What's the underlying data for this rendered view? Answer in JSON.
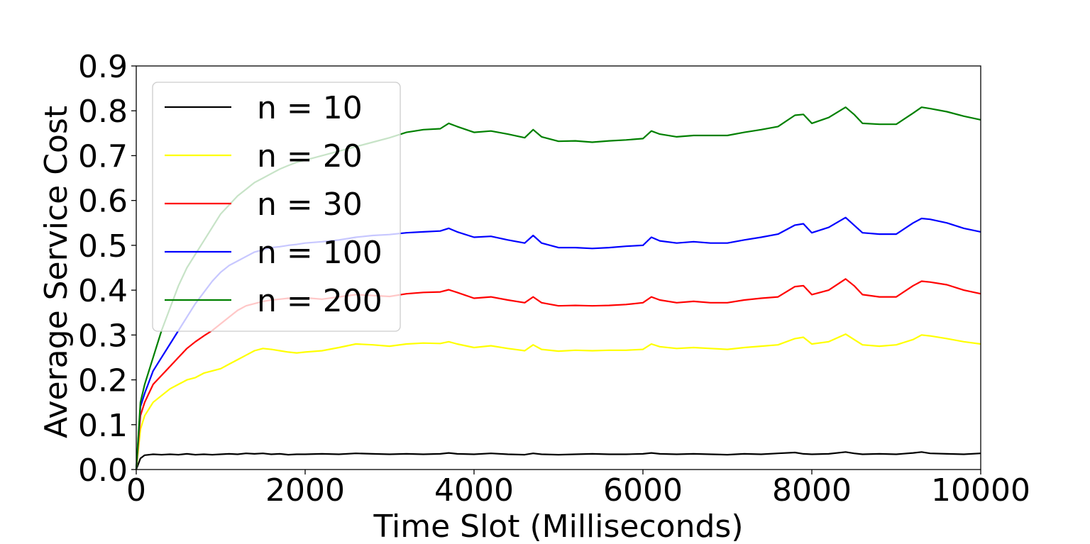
{
  "chart_data": {
    "type": "line",
    "xlabel": "Time Slot (Milliseconds)",
    "ylabel": "Average Service Cost",
    "xlim": [
      0,
      10000
    ],
    "ylim": [
      0.0,
      0.9
    ],
    "x_ticks": [
      0,
      2000,
      4000,
      6000,
      8000,
      10000
    ],
    "y_ticks": [
      0.0,
      0.1,
      0.2,
      0.3,
      0.4,
      0.5,
      0.6,
      0.7,
      0.8,
      0.9
    ],
    "x_tick_labels": [
      "0",
      "2000",
      "4000",
      "6000",
      "8000",
      "10000"
    ],
    "y_tick_labels": [
      "0.0",
      "0.1",
      "0.2",
      "0.3",
      "0.4",
      "0.5",
      "0.6",
      "0.7",
      "0.8",
      "0.9"
    ],
    "grid": false,
    "legend_position": "top-left",
    "x": [
      0,
      50,
      100,
      200,
      300,
      400,
      500,
      600,
      700,
      800,
      900,
      1000,
      1100,
      1200,
      1300,
      1400,
      1500,
      1600,
      1700,
      1800,
      1900,
      2000,
      2200,
      2400,
      2600,
      2800,
      3000,
      3200,
      3400,
      3600,
      3700,
      3800,
      4000,
      4200,
      4400,
      4600,
      4700,
      4800,
      5000,
      5200,
      5400,
      5600,
      5800,
      6000,
      6100,
      6200,
      6400,
      6600,
      6800,
      7000,
      7200,
      7400,
      7600,
      7800,
      7900,
      8000,
      8200,
      8400,
      8500,
      8600,
      8800,
      9000,
      9200,
      9300,
      9400,
      9600,
      9800,
      10000
    ],
    "series": [
      {
        "name": "n = 10",
        "color": "#000000",
        "values": [
          0.0,
          0.025,
          0.032,
          0.034,
          0.033,
          0.034,
          0.033,
          0.035,
          0.033,
          0.034,
          0.033,
          0.034,
          0.035,
          0.034,
          0.036,
          0.035,
          0.036,
          0.034,
          0.035,
          0.033,
          0.034,
          0.034,
          0.035,
          0.034,
          0.036,
          0.035,
          0.034,
          0.035,
          0.034,
          0.035,
          0.037,
          0.035,
          0.034,
          0.036,
          0.034,
          0.033,
          0.036,
          0.034,
          0.033,
          0.034,
          0.035,
          0.034,
          0.034,
          0.035,
          0.037,
          0.035,
          0.034,
          0.035,
          0.034,
          0.033,
          0.035,
          0.034,
          0.036,
          0.038,
          0.035,
          0.034,
          0.035,
          0.039,
          0.036,
          0.034,
          0.035,
          0.034,
          0.037,
          0.039,
          0.036,
          0.035,
          0.034,
          0.036
        ]
      },
      {
        "name": "n = 20",
        "color": "#ffff00",
        "values": [
          0.0,
          0.09,
          0.12,
          0.15,
          0.165,
          0.18,
          0.19,
          0.2,
          0.205,
          0.215,
          0.22,
          0.225,
          0.235,
          0.245,
          0.255,
          0.265,
          0.27,
          0.268,
          0.265,
          0.262,
          0.26,
          0.262,
          0.265,
          0.272,
          0.28,
          0.278,
          0.275,
          0.28,
          0.282,
          0.281,
          0.285,
          0.28,
          0.272,
          0.276,
          0.27,
          0.265,
          0.278,
          0.268,
          0.264,
          0.266,
          0.265,
          0.266,
          0.266,
          0.268,
          0.28,
          0.274,
          0.27,
          0.272,
          0.27,
          0.268,
          0.272,
          0.275,
          0.278,
          0.292,
          0.295,
          0.28,
          0.285,
          0.302,
          0.29,
          0.278,
          0.275,
          0.278,
          0.29,
          0.3,
          0.298,
          0.292,
          0.285,
          0.28
        ]
      },
      {
        "name": "n = 30",
        "color": "#ff0000",
        "values": [
          0.0,
          0.12,
          0.15,
          0.19,
          0.21,
          0.23,
          0.25,
          0.27,
          0.285,
          0.298,
          0.31,
          0.325,
          0.34,
          0.355,
          0.365,
          0.37,
          0.375,
          0.378,
          0.38,
          0.382,
          0.381,
          0.383,
          0.38,
          0.385,
          0.39,
          0.388,
          0.386,
          0.392,
          0.395,
          0.396,
          0.401,
          0.395,
          0.382,
          0.385,
          0.378,
          0.372,
          0.385,
          0.372,
          0.365,
          0.366,
          0.365,
          0.366,
          0.368,
          0.372,
          0.385,
          0.378,
          0.372,
          0.375,
          0.372,
          0.372,
          0.378,
          0.382,
          0.385,
          0.408,
          0.41,
          0.39,
          0.4,
          0.425,
          0.41,
          0.39,
          0.385,
          0.385,
          0.41,
          0.42,
          0.418,
          0.412,
          0.4,
          0.392
        ]
      },
      {
        "name": "n = 100",
        "color": "#0000ff",
        "values": [
          0.0,
          0.14,
          0.17,
          0.22,
          0.25,
          0.28,
          0.31,
          0.34,
          0.37,
          0.395,
          0.42,
          0.44,
          0.455,
          0.465,
          0.475,
          0.485,
          0.49,
          0.495,
          0.497,
          0.5,
          0.502,
          0.505,
          0.508,
          0.512,
          0.518,
          0.522,
          0.524,
          0.528,
          0.53,
          0.532,
          0.538,
          0.53,
          0.518,
          0.52,
          0.512,
          0.505,
          0.522,
          0.505,
          0.495,
          0.495,
          0.493,
          0.495,
          0.498,
          0.5,
          0.518,
          0.51,
          0.505,
          0.508,
          0.505,
          0.505,
          0.512,
          0.518,
          0.525,
          0.545,
          0.548,
          0.528,
          0.54,
          0.562,
          0.545,
          0.528,
          0.525,
          0.525,
          0.55,
          0.56,
          0.558,
          0.55,
          0.538,
          0.53
        ]
      },
      {
        "name": "n = 200",
        "color": "#008000",
        "values": [
          0.0,
          0.15,
          0.19,
          0.25,
          0.31,
          0.36,
          0.41,
          0.45,
          0.48,
          0.51,
          0.54,
          0.57,
          0.59,
          0.61,
          0.625,
          0.64,
          0.65,
          0.66,
          0.67,
          0.678,
          0.685,
          0.69,
          0.7,
          0.71,
          0.72,
          0.73,
          0.74,
          0.752,
          0.758,
          0.76,
          0.772,
          0.765,
          0.752,
          0.755,
          0.748,
          0.74,
          0.758,
          0.742,
          0.732,
          0.733,
          0.73,
          0.733,
          0.735,
          0.738,
          0.755,
          0.748,
          0.742,
          0.745,
          0.745,
          0.745,
          0.752,
          0.758,
          0.765,
          0.79,
          0.792,
          0.772,
          0.785,
          0.808,
          0.792,
          0.772,
          0.77,
          0.77,
          0.795,
          0.808,
          0.805,
          0.798,
          0.788,
          0.78
        ]
      }
    ]
  }
}
